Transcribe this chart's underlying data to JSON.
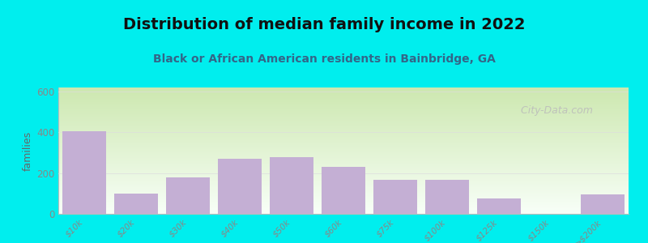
{
  "title": "Distribution of median family income in 2022",
  "subtitle": "Black or African American residents in Bainbridge, GA",
  "ylabel": "families",
  "categories": [
    "$10k",
    "$20k",
    "$30k",
    "$40k",
    "$50k",
    "$60k",
    "$75k",
    "$100k",
    "$125k",
    "$150k",
    ">$200k"
  ],
  "bar_values": [
    405,
    100,
    180,
    270,
    280,
    230,
    165,
    165,
    75,
    0,
    95
  ],
  "bar_color": "#c4afd4",
  "background_color": "#00EEEE",
  "plot_bg_top": "#cde8b0",
  "plot_bg_bottom": "#f8fff8",
  "ylim": [
    0,
    620
  ],
  "yticks": [
    0,
    200,
    400,
    600
  ],
  "title_fontsize": 14,
  "subtitle_fontsize": 10,
  "ylabel_fontsize": 9,
  "watermark": "  City-Data.com"
}
